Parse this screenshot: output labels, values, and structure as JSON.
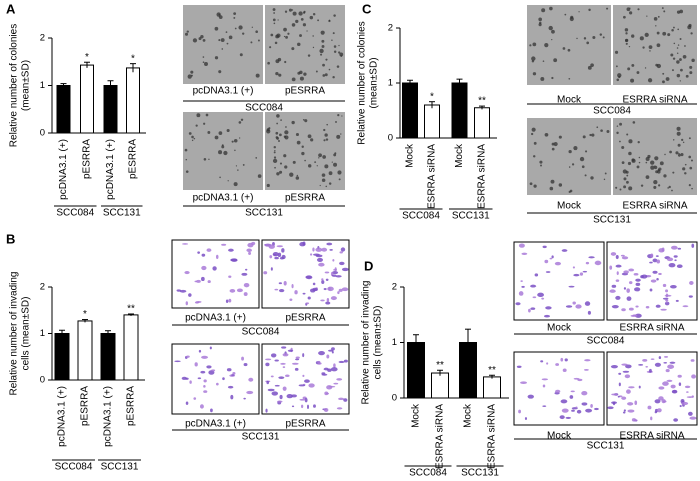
{
  "chart_data": [
    {
      "type": "bar",
      "panel": "A",
      "y_label": [
        "Relative number of colonies",
        "(mean±SD)"
      ],
      "categories": [
        "pcDNA3.1 (+)",
        "pESRRA",
        "pcDNA3.1 (+)",
        "pESRRA"
      ],
      "groups": [
        "SCC084",
        "SCC131"
      ],
      "values": [
        1.0,
        1.43,
        1.0,
        1.37
      ],
      "errors": [
        0.04,
        0.06,
        0.1,
        0.09
      ],
      "annotations": [
        null,
        "*",
        null,
        "*"
      ],
      "colors": [
        "#000000",
        "#ffffff",
        "#000000",
        "#ffffff"
      ],
      "ylim": [
        0,
        2
      ],
      "yticks": [
        0,
        1,
        2
      ]
    },
    {
      "type": "bar",
      "panel": "B",
      "y_label": [
        "Relative number of invading",
        "cells (mean±SD)"
      ],
      "categories": [
        "pcDNA3.1 (+)",
        "pESRRA",
        "pcDNA3.1 (+)",
        "pESRRA"
      ],
      "groups": [
        "SCC084",
        "SCC131"
      ],
      "values": [
        1.0,
        1.27,
        1.0,
        1.4
      ],
      "errors": [
        0.07,
        0.03,
        0.06,
        0.02
      ],
      "annotations": [
        null,
        "*",
        null,
        "**"
      ],
      "colors": [
        "#000000",
        "#ffffff",
        "#000000",
        "#ffffff"
      ],
      "ylim": [
        0,
        2
      ],
      "yticks": [
        0,
        1,
        2
      ]
    },
    {
      "type": "bar",
      "panel": "C",
      "y_label": [
        "Relative number of colonies",
        "(mean±SD)"
      ],
      "categories": [
        "Mock",
        "ESRRA siRNA",
        "Mock",
        "ESRRA siRNA"
      ],
      "groups": [
        "SCC084",
        "SCC131"
      ],
      "values": [
        1.0,
        0.6,
        1.0,
        0.55
      ],
      "errors": [
        0.05,
        0.06,
        0.07,
        0.03
      ],
      "annotations": [
        null,
        "*",
        null,
        "**"
      ],
      "colors": [
        "#000000",
        "#ffffff",
        "#000000",
        "#ffffff"
      ],
      "ylim": [
        0,
        2
      ],
      "yticks": [
        0,
        1,
        2
      ]
    },
    {
      "type": "bar",
      "panel": "D",
      "y_label": [
        "Relative number of invading",
        "cells (mean±SD)"
      ],
      "categories": [
        "Mock",
        "ESRRA siRNA",
        "Mock",
        "ESRRA siRNA"
      ],
      "groups": [
        "SCC084",
        "SCC131"
      ],
      "values": [
        1.0,
        0.45,
        1.0,
        0.38
      ],
      "errors": [
        0.14,
        0.05,
        0.24,
        0.03
      ],
      "annotations": [
        null,
        "**",
        null,
        "**"
      ],
      "colors": [
        "#000000",
        "#ffffff",
        "#000000",
        "#ffffff"
      ],
      "ylim": [
        0,
        2
      ],
      "yticks": [
        0,
        1,
        2
      ]
    }
  ],
  "micrographs": [
    {
      "style": "colony",
      "rows": [
        {
          "labels": [
            "pcDNA3.1 (+)",
            "pESRRA"
          ],
          "group": "SCC084"
        },
        {
          "labels": [
            "pcDNA3.1 (+)",
            "pESRRA"
          ],
          "group": "SCC131"
        }
      ]
    },
    {
      "style": "invasion",
      "rows": [
        {
          "labels": [
            "pcDNA3.1 (+)",
            "pESRRA"
          ],
          "group": "SCC084"
        },
        {
          "labels": [
            "pcDNA3.1 (+)",
            "pESRRA"
          ],
          "group": "SCC131"
        }
      ]
    },
    {
      "style": "colony",
      "rows": [
        {
          "labels": [
            "Mock",
            "ESRRA siRNA"
          ],
          "group": "SCC084"
        },
        {
          "labels": [
            "Mock",
            "ESRRA siRNA"
          ],
          "group": "SCC131"
        }
      ]
    },
    {
      "style": "invasion",
      "rows": [
        {
          "labels": [
            "Mock",
            "ESRRA siRNA"
          ],
          "group": "SCC084"
        },
        {
          "labels": [
            "Mock",
            "ESRRA siRNA"
          ],
          "group": "SCC131"
        }
      ]
    }
  ]
}
